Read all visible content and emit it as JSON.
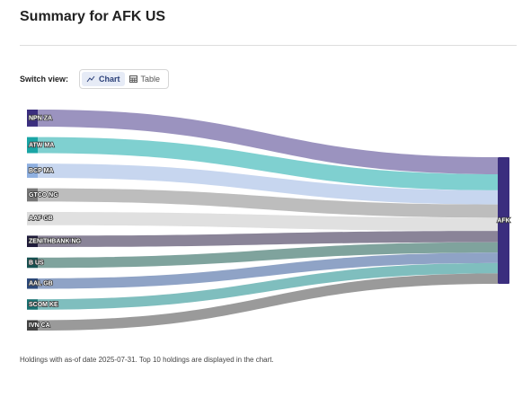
{
  "header": {
    "title": "Summary for AFK US"
  },
  "switch_view": {
    "label": "Switch view:",
    "options": [
      "Chart",
      "Table"
    ]
  },
  "footnote": "Holdings with as-of date 2025-07-31. Top 10 holdings are displayed in the chart.",
  "chart_data": {
    "type": "sankey",
    "target": "AFK",
    "target_color": "#3b2e7e",
    "categories": [
      "NPN ZA",
      "ATW MA",
      "BCP MA",
      "GTCO NG",
      "AAF GB",
      "ZENITHBANK NG",
      "B US",
      "AAL GB",
      "SCOM KE",
      "IVN CA"
    ],
    "values": [
      18,
      17,
      15,
      14,
      14,
      12,
      11,
      11,
      11,
      11
    ],
    "link_colors": [
      "#9b93bf",
      "#7fd0d0",
      "#c7d6ef",
      "#bdbdbd",
      "#e0e0e0",
      "#8a8498",
      "#7fa39d",
      "#8fa3c6",
      "#7fbebe",
      "#9a9a9a"
    ],
    "node_colors": [
      "#3b2e7e",
      "#1aa5a5",
      "#8fb0e0",
      "#777777",
      "#dddddd",
      "#1f1b3b",
      "#165252",
      "#2d4a7c",
      "#1a7272",
      "#444444"
    ]
  }
}
